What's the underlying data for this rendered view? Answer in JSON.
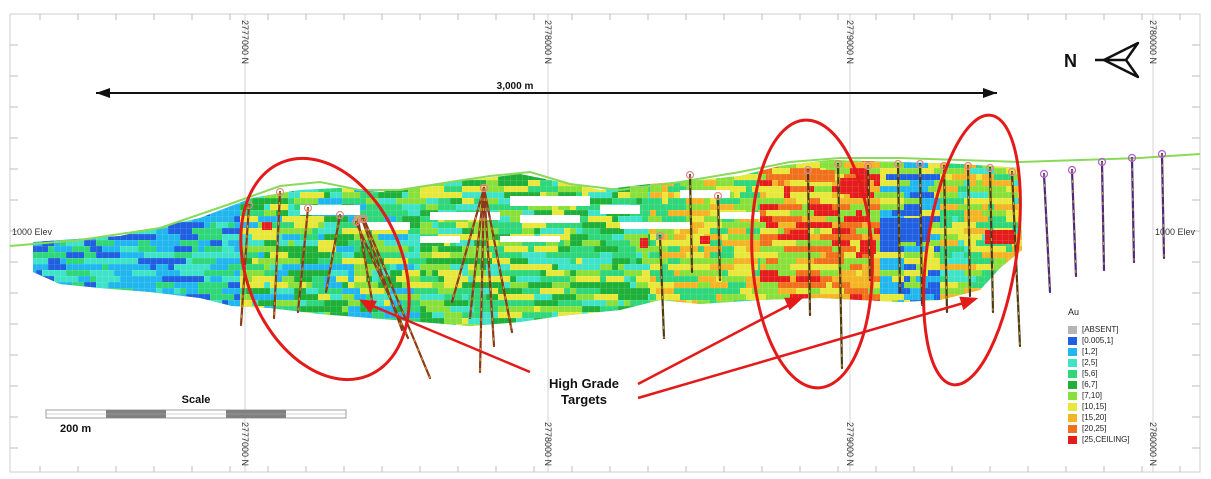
{
  "northings": {
    "labels": [
      "2777000 N",
      "2778000 N",
      "2779000 N",
      "2780000 N"
    ]
  },
  "elevation_labels": {
    "left": "1000 Elev",
    "right": "1000 Elev"
  },
  "dimension": {
    "label": "3,000 m"
  },
  "north_arrow": {
    "letter": "N"
  },
  "annotation": {
    "line1": "High Grade",
    "line2": "Targets"
  },
  "scale_bar": {
    "title": "Scale",
    "distance": "200 m"
  },
  "legend": {
    "title": "Au",
    "items": [
      {
        "label": "[ABSENT]",
        "color": "#b5b5b5"
      },
      {
        "label": "[0.005,1]",
        "color": "#1f5fe0"
      },
      {
        "label": "[1,2]",
        "color": "#22b6ee"
      },
      {
        "label": "[2,5]",
        "color": "#3fe4c8"
      },
      {
        "label": "[5,6]",
        "color": "#2fd67a"
      },
      {
        "label": "[6,7]",
        "color": "#1fb03a"
      },
      {
        "label": "[7,10]",
        "color": "#8ae03a"
      },
      {
        "label": "[10,15]",
        "color": "#e8e83a"
      },
      {
        "label": "[15,20]",
        "color": "#f3b526"
      },
      {
        "label": "[20,25]",
        "color": "#f0701c"
      },
      {
        "label": "[25,CEILING]",
        "color": "#e51c1c"
      }
    ]
  },
  "colors": {
    "highlight": "#e31a1a",
    "terrain": "#8bd95a"
  }
}
